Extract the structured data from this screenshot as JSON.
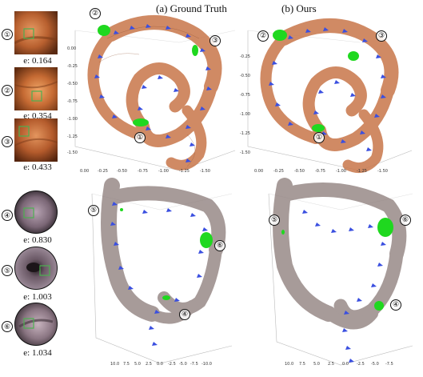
{
  "titles": {
    "ground_truth": "(a) Ground Truth",
    "ours": "(b) Ours"
  },
  "markers": [
    "①",
    "②",
    "③",
    "④",
    "⑤",
    "⑥"
  ],
  "top_examples": [
    {
      "marker": "①",
      "error": "e: 0.164"
    },
    {
      "marker": "②",
      "error": "e: 0.354"
    },
    {
      "marker": "③",
      "error": "e: 0.433"
    }
  ],
  "bottom_examples": [
    {
      "marker": "④",
      "error": "e: 0.830"
    },
    {
      "marker": "⑤",
      "error": "e: 1.003"
    },
    {
      "marker": "⑥",
      "error": "e: 1.034"
    }
  ],
  "axis_ticks": {
    "top_left_x": [
      "0.00",
      "-0.25",
      "-0.50",
      "-0.75",
      "-1.00",
      "-1.25",
      "-1.50"
    ],
    "top_left_y": [
      "0.00",
      "-0.25",
      "-0.50",
      "-0.75",
      "-1.00",
      "-1.25",
      "-1.50"
    ],
    "top_right_x": [
      "0.00",
      "-0.25",
      "-0.50",
      "-0.75",
      "-1.00",
      "-1.25",
      "-1.50"
    ],
    "top_right_y": [
      "-0.25",
      "-0.50",
      "-0.75",
      "-1.00",
      "-1.25",
      "-1.50"
    ],
    "bottom_left_x": [
      "10.0",
      "7.5",
      "5.0",
      "2.5",
      "0.0",
      "-2.5",
      "-5.0",
      "-7.5",
      "-10.0"
    ],
    "bottom_right_x": [
      "10.0",
      "7.5",
      "5.0",
      "2.5",
      "0.0",
      "-2.5",
      "-5.0",
      "-7.5"
    ]
  },
  "colors": {
    "colon_top": "#c8764a",
    "colon_bottom": "#8a7a78",
    "trajectory": "#3a4fe0",
    "highlight": "#1fd81f",
    "roi_box": "#4caf50",
    "thumb_top": "#c1693c",
    "thumb_bottom": "#7d6a76"
  }
}
